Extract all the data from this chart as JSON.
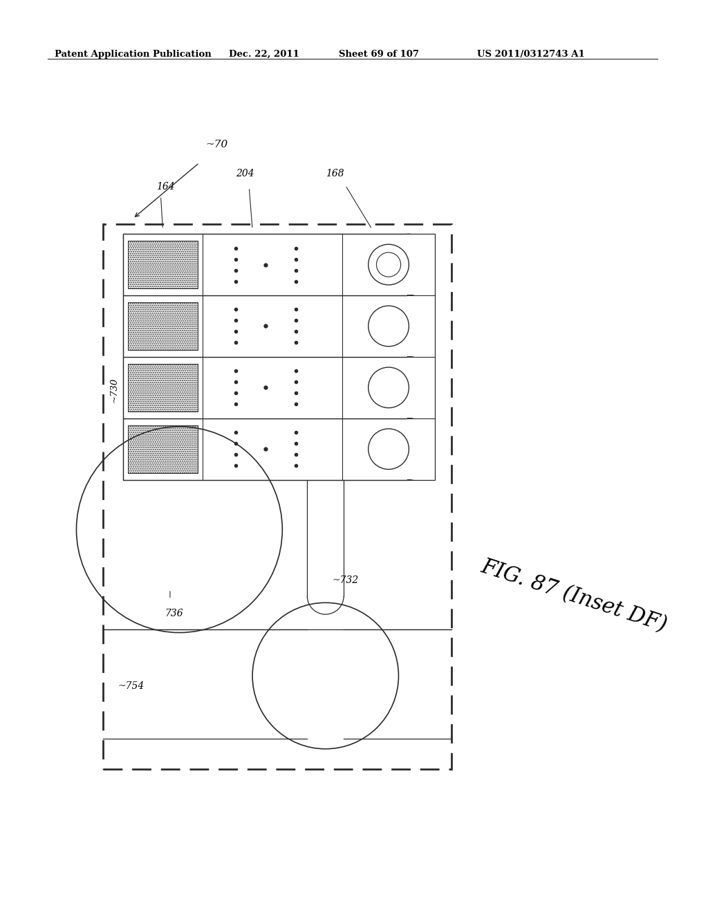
{
  "bg_color": "#ffffff",
  "header_text": "Patent Application Publication",
  "header_date": "Dec. 22, 2011",
  "header_sheet": "Sheet 69 of 107",
  "header_patent": "US 2011/0312743 A1",
  "fig_label": "FIG. 87 (Inset DF)",
  "ref_70": "~70",
  "ref_164": "164",
  "ref_204": "204",
  "ref_168": "168",
  "ref_730": "~730",
  "ref_732": "~732",
  "ref_754": "~754",
  "ref_736": "736",
  "line_color": "#2a2a2a"
}
